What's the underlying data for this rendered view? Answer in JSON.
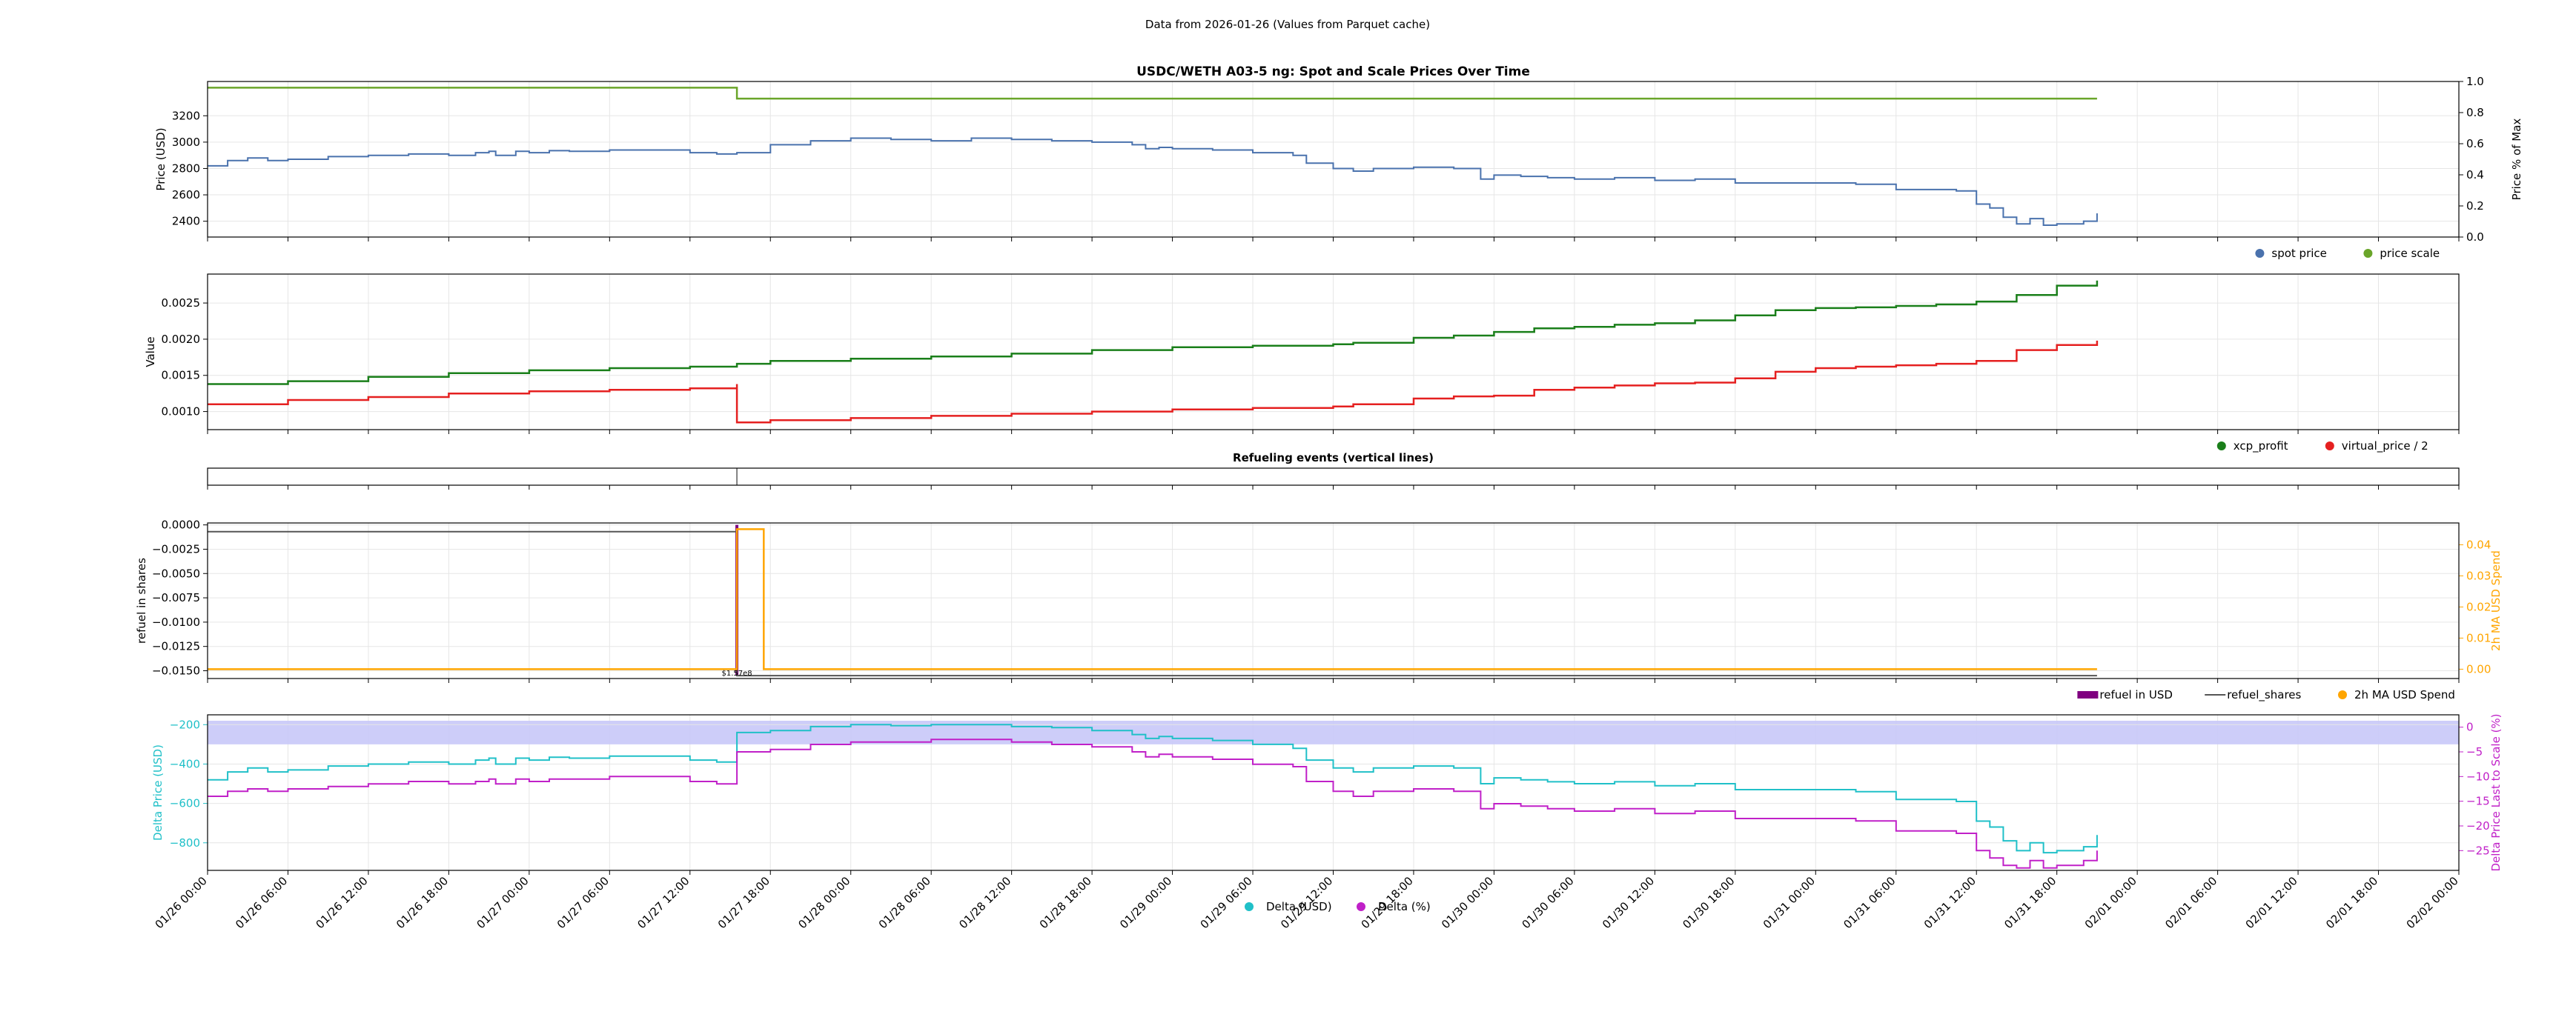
{
  "suptitle": "Data from 2026-01-26 (Values from Parquet cache)",
  "colors": {
    "spot": "#4a72ad",
    "scale": "#6aa52a",
    "xcp": "#1a7f1a",
    "vp": "#e52020",
    "refuel_usd": "#800080",
    "refuel_shares": "#555555",
    "ma": "#ffa500",
    "delta_usd": "#20c0c8",
    "delta_pct": "#c020c8",
    "band": "#c8c8f8"
  },
  "x_ticks": [
    "01/26 00:00",
    "01/26 06:00",
    "01/26 12:00",
    "01/26 18:00",
    "01/27 00:00",
    "01/27 06:00",
    "01/27 12:00",
    "01/27 18:00",
    "01/28 00:00",
    "01/28 06:00",
    "01/28 12:00",
    "01/28 18:00",
    "01/29 00:00",
    "01/29 06:00",
    "01/29 12:00",
    "01/29 18:00",
    "01/30 00:00",
    "01/30 06:00",
    "01/30 12:00",
    "01/30 18:00",
    "01/31 00:00",
    "01/31 06:00",
    "01/31 12:00",
    "01/31 18:00",
    "02/01 00:00",
    "02/01 06:00",
    "02/01 12:00",
    "02/01 18:00",
    "02/02 00:00"
  ],
  "chart_data": [
    {
      "type": "line",
      "title": "USDC/WETH A03-5 ng: Spot and Scale Prices Over Time",
      "ylabel": "Price (USD)",
      "y2label": "Price % of Max",
      "yticks": [
        "2400",
        "2600",
        "2800",
        "3000",
        "3200"
      ],
      "y2ticks": [
        "0.0",
        "0.2",
        "0.4",
        "0.6",
        "0.8",
        "1.0"
      ],
      "ylim": [
        2280,
        3460
      ],
      "y2lim": [
        0,
        1
      ],
      "x_hours": [
        0,
        192
      ],
      "series": [
        {
          "name": "spot price",
          "axis": "left",
          "x": [
            0,
            3,
            6,
            9,
            12,
            18,
            24,
            30,
            36,
            40,
            42,
            43,
            46,
            48,
            51,
            54,
            60,
            66,
            72,
            76,
            79,
            84,
            90,
            96,
            102,
            108,
            114,
            120,
            126,
            132,
            138,
            140,
            142,
            144,
            146,
            150,
            156,
            162,
            164,
            168,
            171,
            174,
            180,
            186,
            190,
            192,
            196,
            200,
            204,
            210,
            216,
            222,
            228,
            234,
            240,
            246,
            252,
            258,
            261,
            264,
            266,
            268,
            270,
            272,
            274,
            276,
            280,
            282
          ],
          "y": [
            2820,
            2860,
            2880,
            2860,
            2870,
            2890,
            2900,
            2910,
            2900,
            2920,
            2930,
            2900,
            2930,
            2920,
            2935,
            2930,
            2940,
            2940,
            2920,
            2910,
            2920,
            2980,
            3010,
            3030,
            3020,
            3010,
            3030,
            3020,
            3010,
            3000,
            2980,
            2950,
            2960,
            2950,
            2950,
            2940,
            2920,
            2900,
            2840,
            2800,
            2780,
            2800,
            2810,
            2800,
            2720,
            2750,
            2740,
            2730,
            2720,
            2730,
            2710,
            2720,
            2690,
            2690,
            2690,
            2680,
            2640,
            2640,
            2630,
            2530,
            2500,
            2430,
            2380,
            2420,
            2370,
            2380,
            2400,
            2460
          ]
        },
        {
          "name": "price scale",
          "axis": "right",
          "x": [
            0,
            79,
            79.01,
            282
          ],
          "y": [
            0.96,
            0.96,
            0.89,
            0.89
          ]
        }
      ],
      "legend": "bottom-right"
    },
    {
      "type": "line",
      "ylabel": "Value",
      "yticks": [
        "0.0010",
        "0.0015",
        "0.0020",
        "0.0025"
      ],
      "ylim": [
        0.00075,
        0.0029
      ],
      "x_hours": [
        0,
        192
      ],
      "series": [
        {
          "name": "xcp_profit",
          "x": [
            0,
            12,
            24,
            36,
            48,
            60,
            72,
            79,
            84,
            96,
            108,
            120,
            132,
            144,
            156,
            168,
            171,
            180,
            186,
            192,
            198,
            204,
            210,
            216,
            222,
            228,
            234,
            240,
            246,
            252,
            258,
            264,
            270,
            276,
            282
          ],
          "y": [
            0.00138,
            0.00142,
            0.00148,
            0.00153,
            0.00157,
            0.0016,
            0.00162,
            0.00166,
            0.0017,
            0.00173,
            0.00176,
            0.0018,
            0.00185,
            0.00189,
            0.00191,
            0.00193,
            0.00195,
            0.00202,
            0.00205,
            0.0021,
            0.00215,
            0.00217,
            0.0022,
            0.00222,
            0.00226,
            0.00233,
            0.0024,
            0.00243,
            0.00244,
            0.00246,
            0.00248,
            0.00252,
            0.00261,
            0.00274,
            0.00281
          ]
        },
        {
          "name": "virtual_price / 2",
          "x": [
            0,
            12,
            24,
            36,
            48,
            60,
            72,
            79,
            79.01,
            84,
            96,
            108,
            120,
            132,
            144,
            156,
            168,
            171,
            180,
            186,
            192,
            198,
            204,
            210,
            216,
            222,
            228,
            234,
            240,
            246,
            252,
            258,
            264,
            270,
            276,
            282
          ],
          "y": [
            0.0011,
            0.00116,
            0.0012,
            0.00125,
            0.00128,
            0.0013,
            0.00132,
            0.00138,
            0.00085,
            0.00088,
            0.00091,
            0.00094,
            0.00097,
            0.001,
            0.00103,
            0.00105,
            0.00107,
            0.0011,
            0.00118,
            0.00121,
            0.00122,
            0.0013,
            0.00133,
            0.00136,
            0.00139,
            0.0014,
            0.00146,
            0.00155,
            0.0016,
            0.00162,
            0.00164,
            0.00166,
            0.0017,
            0.00185,
            0.00192,
            0.00198
          ]
        }
      ],
      "legend": "bottom-right"
    },
    {
      "type": "line",
      "title": "Refueling events (vertical lines)",
      "events_x": [
        79
      ]
    },
    {
      "type": "line",
      "ylabel": "refuel in shares",
      "y2label": "2h MA USD Spend",
      "yticks": [
        "−0.0150",
        "−0.0125",
        "−0.0100",
        "−0.0075",
        "−0.0050",
        "−0.0025",
        "0.0000"
      ],
      "y2ticks": [
        "0.00",
        "0.01",
        "0.02",
        "0.03",
        "0.04"
      ],
      "ylim": [
        -0.0158,
        0.0002
      ],
      "y2lim": [
        -0.003,
        0.047
      ],
      "annotation": "$1.57e8",
      "series": [
        {
          "name": "refuel in USD",
          "type": "bar",
          "x": [
            79
          ],
          "y": [
            -0.0155
          ]
        },
        {
          "name": "refuel_shares",
          "x": [
            0,
            79,
            79.01,
            282
          ],
          "y": [
            -0.0007,
            -0.0007,
            -0.0155,
            -0.0155
          ]
        },
        {
          "name": "2h MA USD Spend",
          "axis": "right",
          "x": [
            0,
            79,
            79.01,
            83,
            83.01,
            282
          ],
          "y": [
            0,
            0,
            0.045,
            0.045,
            0,
            0
          ]
        }
      ],
      "legend": "bottom-right"
    },
    {
      "type": "line",
      "ylabel": "Delta Price (USD)",
      "y2label": "Delta Price Last to Scale (%)",
      "yticks": [
        "−800",
        "−600",
        "−400",
        "−200"
      ],
      "y2ticks": [
        "−25",
        "−20",
        "−15",
        "−10",
        "−5",
        "0"
      ],
      "ylim": [
        -940,
        -150
      ],
      "y2lim": [
        -29,
        2.5
      ],
      "band": [
        -180,
        -300
      ],
      "series": [
        {
          "name": "Delta (USD)",
          "axis": "left",
          "x": [
            0,
            3,
            6,
            9,
            12,
            18,
            24,
            30,
            36,
            40,
            42,
            43,
            46,
            48,
            51,
            54,
            60,
            66,
            72,
            76,
            79,
            79.01,
            84,
            90,
            96,
            102,
            108,
            114,
            120,
            126,
            132,
            138,
            140,
            142,
            144,
            146,
            150,
            156,
            162,
            164,
            168,
            171,
            174,
            180,
            186,
            190,
            192,
            196,
            200,
            204,
            210,
            216,
            222,
            228,
            234,
            240,
            246,
            252,
            258,
            261,
            264,
            266,
            268,
            270,
            272,
            274,
            276,
            280,
            282
          ],
          "y": [
            -480,
            -440,
            -420,
            -440,
            -430,
            -410,
            -400,
            -390,
            -400,
            -380,
            -370,
            -400,
            -370,
            -380,
            -365,
            -370,
            -360,
            -360,
            -380,
            -390,
            -380,
            -240,
            -230,
            -210,
            -200,
            -205,
            -200,
            -200,
            -210,
            -215,
            -230,
            -250,
            -270,
            -260,
            -270,
            -270,
            -280,
            -300,
            -320,
            -380,
            -420,
            -440,
            -420,
            -410,
            -420,
            -500,
            -470,
            -480,
            -490,
            -500,
            -490,
            -510,
            -500,
            -530,
            -530,
            -530,
            -540,
            -580,
            -580,
            -590,
            -690,
            -720,
            -790,
            -840,
            -800,
            -850,
            -840,
            -820,
            -760
          ]
        },
        {
          "name": "Delta (%)",
          "axis": "right",
          "x": [
            0,
            3,
            6,
            9,
            12,
            18,
            24,
            30,
            36,
            40,
            42,
            43,
            46,
            48,
            51,
            54,
            60,
            66,
            72,
            76,
            79,
            79.01,
            84,
            90,
            96,
            102,
            108,
            114,
            120,
            126,
            132,
            138,
            140,
            142,
            144,
            146,
            150,
            156,
            162,
            164,
            168,
            171,
            174,
            180,
            186,
            190,
            192,
            196,
            200,
            204,
            210,
            216,
            222,
            228,
            234,
            240,
            246,
            252,
            258,
            261,
            264,
            266,
            268,
            270,
            272,
            274,
            276,
            280,
            282
          ],
          "y": [
            -14,
            -13,
            -12.5,
            -13,
            -12.5,
            -12,
            -11.5,
            -11,
            -11.5,
            -11,
            -10.5,
            -11.5,
            -10.5,
            -11,
            -10.5,
            -10.5,
            -10,
            -10,
            -11,
            -11.5,
            -11,
            -5,
            -4.5,
            -3.5,
            -3,
            -3,
            -2.5,
            -2.5,
            -3,
            -3.5,
            -4,
            -5,
            -6,
            -5.5,
            -6,
            -6,
            -6.5,
            -7.5,
            -8,
            -11,
            -13,
            -14,
            -13,
            -12.5,
            -13,
            -16.5,
            -15.5,
            -16,
            -16.5,
            -17,
            -16.5,
            -17.5,
            -17,
            -18.5,
            -18.5,
            -18.5,
            -19,
            -21,
            -21,
            -21.5,
            -25,
            -26.5,
            -28,
            -28.5,
            -27,
            -28.5,
            -28,
            -27,
            -25
          ]
        }
      ],
      "legend": "bottom-center"
    }
  ]
}
